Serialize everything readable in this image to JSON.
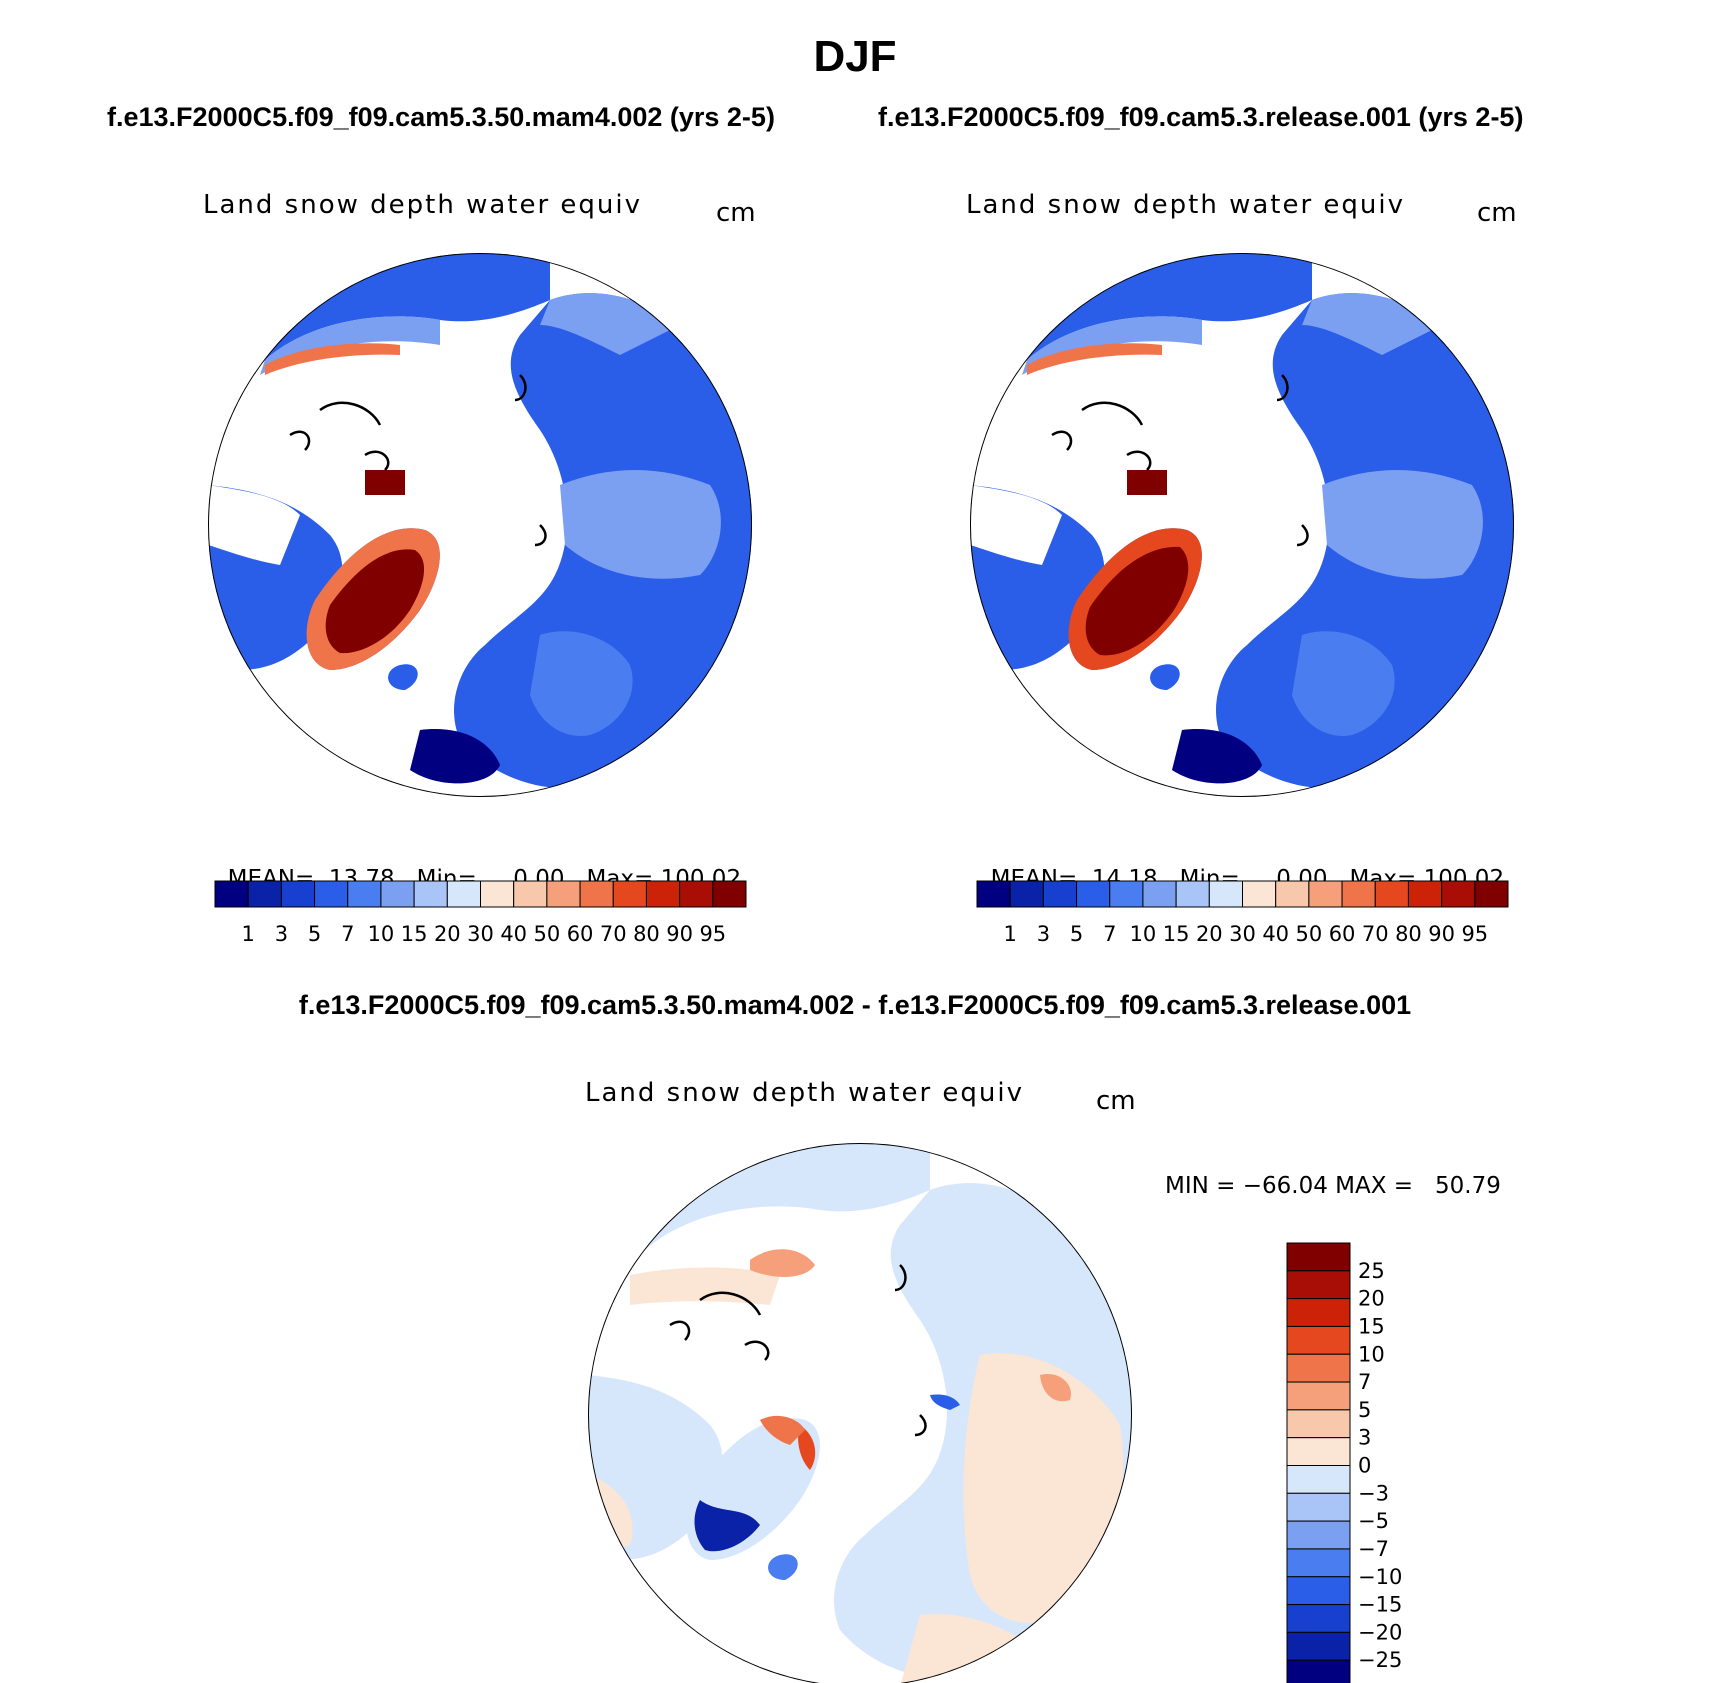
{
  "figure": {
    "title": "DJF",
    "case_left": "f.e13.F2000C5.f09_f09.cam5.3.50.mam4.002 (yrs 2-5)",
    "case_right": "f.e13.F2000C5.f09_f09.cam5.3.release.001 (yrs 2-5)",
    "diff_title": "f.e13.F2000C5.f09_f09.cam5.3.50.mam4.002 - f.e13.F2000C5.f09_f09.cam5.3.release.001"
  },
  "panels": [
    {
      "variable": "Land snow depth water equiv",
      "units": "cm",
      "stats": {
        "mean_label": "MEAN=",
        "mean": "13.78",
        "min_label": "Min=",
        "min": "0.00",
        "max_label": "Max=",
        "max": "100.02"
      }
    },
    {
      "variable": "Land snow depth water equiv",
      "units": "cm",
      "stats": {
        "mean_label": "MEAN=",
        "mean": "14.18",
        "min_label": "Min=",
        "min": "0.00",
        "max_label": "Max=",
        "max": "100.02"
      }
    }
  ],
  "diff_panel": {
    "variable": "Land snow depth water equiv",
    "units": "cm",
    "stats_text": "MIN = −66.04 MAX =   50.79"
  },
  "colorbar_horizontal": {
    "ticks": [
      "1",
      "3",
      "5",
      "7",
      "10",
      "15",
      "20",
      "30",
      "40",
      "50",
      "60",
      "70",
      "80",
      "90",
      "95"
    ],
    "colors": [
      "#000080",
      "#0a22a8",
      "#1840d0",
      "#2a5ee8",
      "#4a7ef0",
      "#7ba0f2",
      "#a9c4f6",
      "#d6e6fb",
      "#fbe6d6",
      "#f8c8ad",
      "#f5a07b",
      "#f0744a",
      "#e5481e",
      "#cc2208",
      "#a80e06",
      "#800000"
    ]
  },
  "colorbar_vertical": {
    "ticks": [
      "25",
      "20",
      "15",
      "10",
      "7",
      "5",
      "3",
      "0",
      "−3",
      "−5",
      "−7",
      "−10",
      "−15",
      "−20",
      "−25"
    ],
    "colors": [
      "#800000",
      "#a80e06",
      "#cc2208",
      "#e5481e",
      "#f0744a",
      "#f5a07b",
      "#f8c8ad",
      "#fbe6d6",
      "#d6e6fb",
      "#a9c4f6",
      "#7ba0f2",
      "#4a7ef0",
      "#2a5ee8",
      "#1840d0",
      "#0a22a8",
      "#000080"
    ]
  }
}
